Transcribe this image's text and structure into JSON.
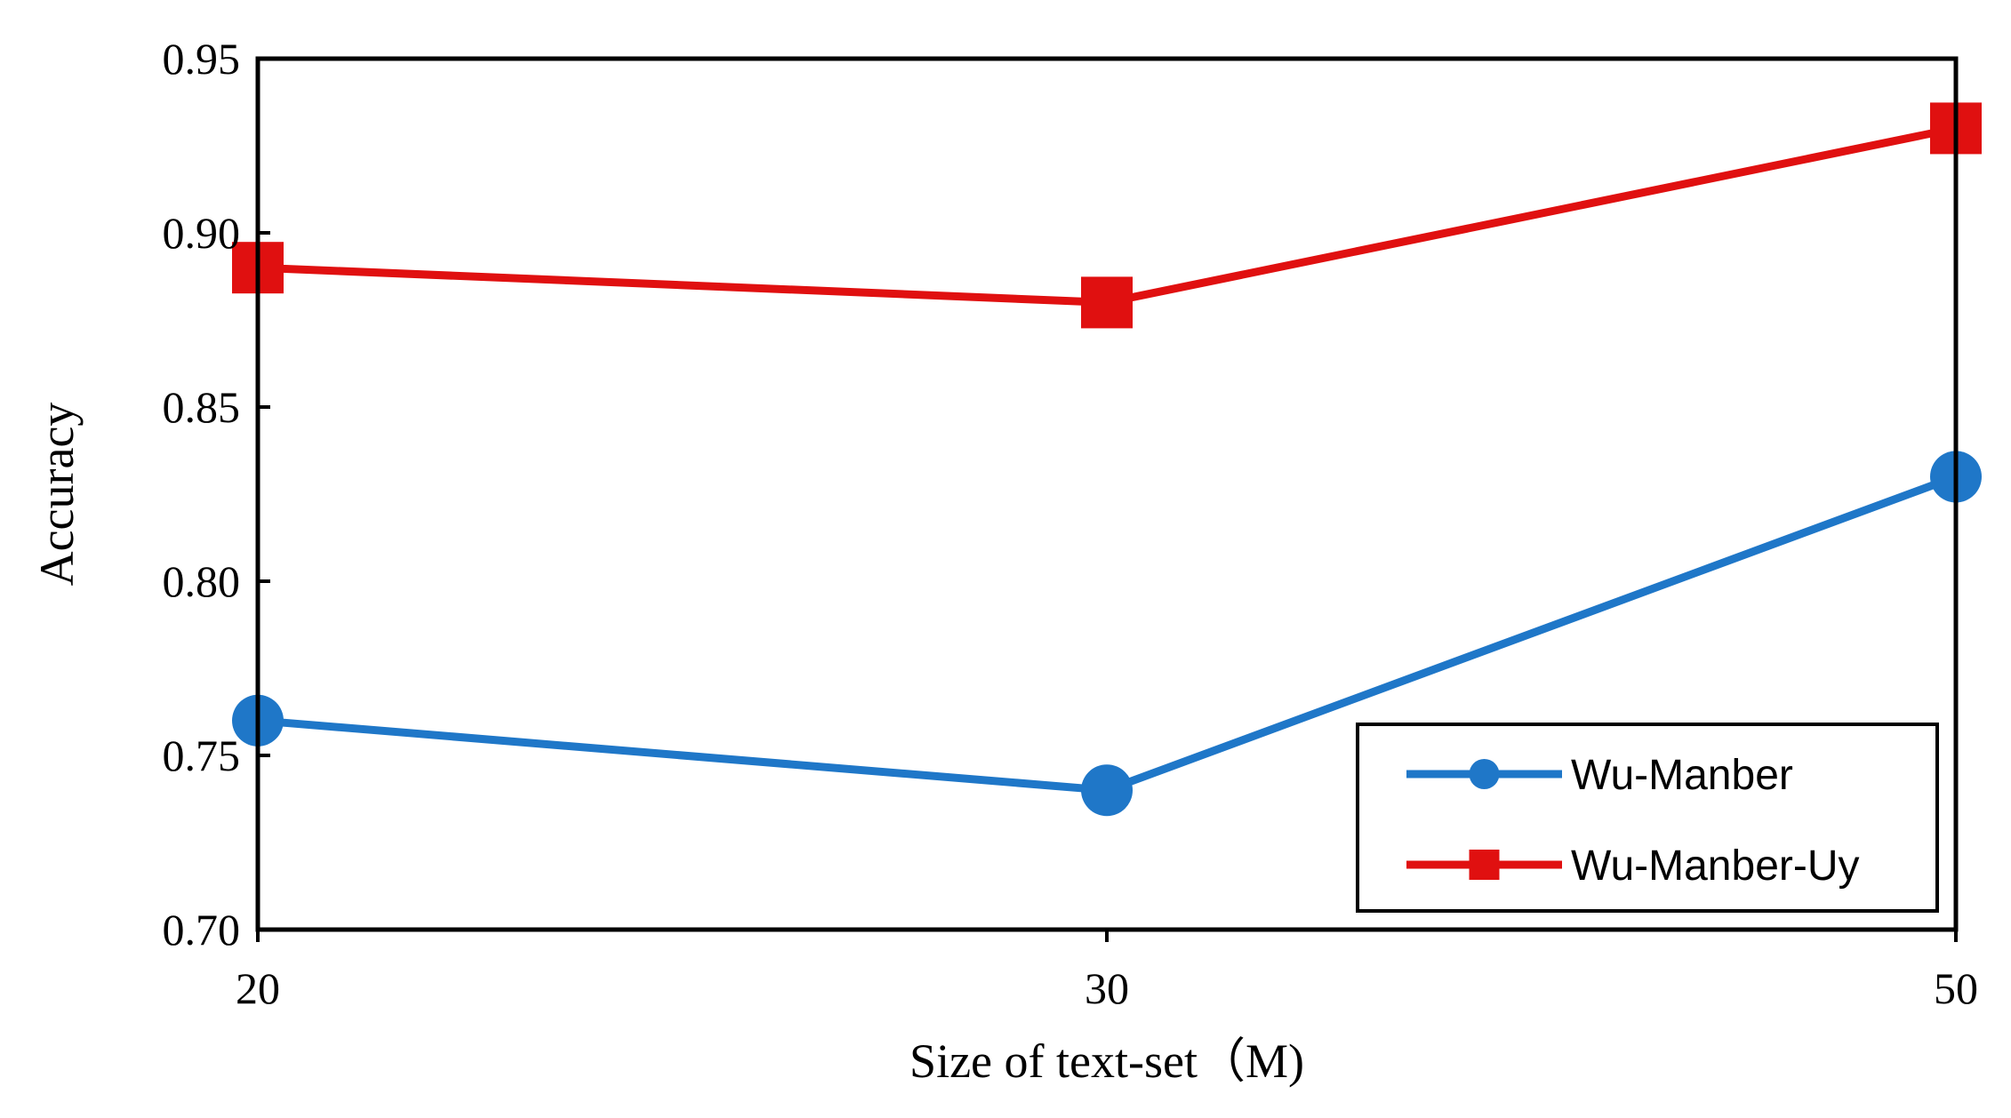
{
  "chart_data": {
    "type": "line",
    "title": "",
    "xlabel": "Size of text-set（M)",
    "ylabel": "Accuracy",
    "categories": [
      "20",
      "30",
      "50"
    ],
    "ylim": [
      0.7,
      0.95
    ],
    "yticks": [
      "0.70",
      "0.75",
      "0.80",
      "0.85",
      "0.90",
      "0.95"
    ],
    "grid": false,
    "legend_position": "bottom-right",
    "series": [
      {
        "name": "Wu-Manber",
        "color": "#1F77C8",
        "marker": "circle",
        "values": [
          0.76,
          0.74,
          0.83
        ]
      },
      {
        "name": "Wu-Manber-Uy",
        "color": "#E01010",
        "marker": "square",
        "values": [
          0.89,
          0.88,
          0.93
        ]
      }
    ]
  }
}
